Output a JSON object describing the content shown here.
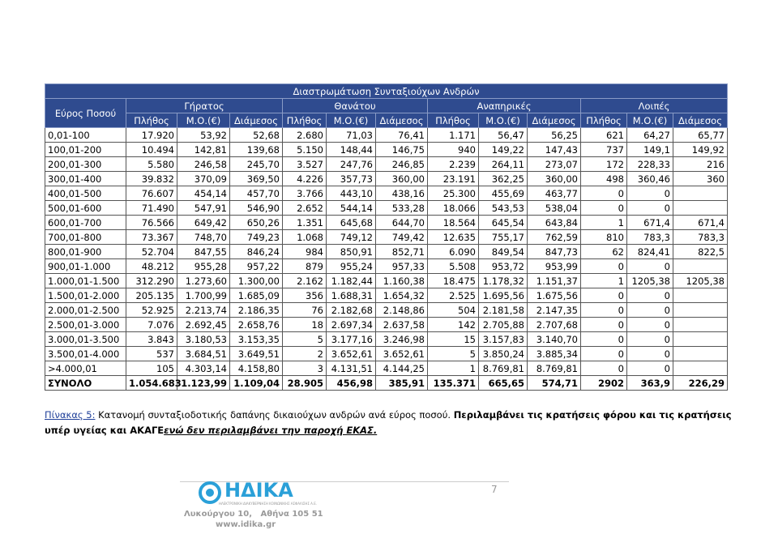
{
  "table": {
    "title": "Διαστρωμάτωση Συνταξιούχων Ανδρών",
    "row_header": "Εύρος Ποσού",
    "groups": [
      "Γήρατος",
      "Θανάτου",
      "Αναπηρικές",
      "Λοιπές"
    ],
    "subheaders": [
      "Πλήθος",
      "Μ.Ο.(€)",
      "Διάμεσος"
    ],
    "rows": [
      [
        "0,01-100",
        "17.920",
        "53,92",
        "52,68",
        "2.680",
        "71,03",
        "76,41",
        "1.171",
        "56,47",
        "56,25",
        "621",
        "64,27",
        "65,77"
      ],
      [
        "100,01-200",
        "10.494",
        "142,81",
        "139,68",
        "5.150",
        "148,44",
        "146,75",
        "940",
        "149,22",
        "147,43",
        "737",
        "149,1",
        "149,92"
      ],
      [
        "200,01-300",
        "5.580",
        "246,58",
        "245,70",
        "3.527",
        "247,76",
        "246,85",
        "2.239",
        "264,11",
        "273,07",
        "172",
        "228,33",
        "216"
      ],
      [
        "300,01-400",
        "39.832",
        "370,09",
        "369,50",
        "4.226",
        "357,73",
        "360,00",
        "23.191",
        "362,25",
        "360,00",
        "498",
        "360,46",
        "360"
      ],
      [
        "400,01-500",
        "76.607",
        "454,14",
        "457,70",
        "3.766",
        "443,10",
        "438,16",
        "25.300",
        "455,69",
        "463,77",
        "0",
        "0",
        null
      ],
      [
        "500,01-600",
        "71.490",
        "547,91",
        "546,90",
        "2.652",
        "544,14",
        "533,28",
        "18.066",
        "543,53",
        "538,04",
        "0",
        "0",
        null
      ],
      [
        "600,01-700",
        "76.566",
        "649,42",
        "650,26",
        "1.351",
        "645,68",
        "644,70",
        "18.564",
        "645,54",
        "643,84",
        "1",
        "671,4",
        "671,4"
      ],
      [
        "700,01-800",
        "73.367",
        "748,70",
        "749,23",
        "1.068",
        "749,12",
        "749,42",
        "12.635",
        "755,17",
        "762,59",
        "810",
        "783,3",
        "783,3"
      ],
      [
        "800,01-900",
        "52.704",
        "847,55",
        "846,24",
        "984",
        "850,91",
        "852,71",
        "6.090",
        "849,54",
        "847,73",
        "62",
        "824,41",
        "822,5"
      ],
      [
        "900,01-1.000",
        "48.212",
        "955,28",
        "957,22",
        "879",
        "955,24",
        "957,33",
        "5.508",
        "953,72",
        "953,99",
        "0",
        "0",
        null
      ],
      [
        "1.000,01-1.500",
        "312.290",
        "1.273,60",
        "1.300,00",
        "2.162",
        "1.182,44",
        "1.160,38",
        "18.475",
        "1.178,32",
        "1.151,37",
        "1",
        "1205,38",
        "1205,38"
      ],
      [
        "1.500,01-2.000",
        "205.135",
        "1.700,99",
        "1.685,09",
        "356",
        "1.688,31",
        "1.654,32",
        "2.525",
        "1.695,56",
        "1.675,56",
        "0",
        "0",
        null
      ],
      [
        "2.000,01-2.500",
        "52.925",
        "2.213,74",
        "2.186,35",
        "76",
        "2.182,68",
        "2.148,86",
        "504",
        "2.181,58",
        "2.147,35",
        "0",
        "0",
        null
      ],
      [
        "2.500,01-3.000",
        "7.076",
        "2.692,45",
        "2.658,76",
        "18",
        "2.697,34",
        "2.637,58",
        "142",
        "2.705,88",
        "2.707,68",
        "0",
        "0",
        null
      ],
      [
        "3.000,01-3.500",
        "3.843",
        "3.180,53",
        "3.153,35",
        "5",
        "3.177,16",
        "3.246,98",
        "15",
        "3.157,83",
        "3.140,70",
        "0",
        "0",
        null
      ],
      [
        "3.500,01-4.000",
        "537",
        "3.684,51",
        "3.649,51",
        "2",
        "3.652,61",
        "3.652,61",
        "5",
        "3.850,24",
        "3.885,34",
        "0",
        "0",
        null
      ],
      [
        ">4.000,01",
        "105",
        "4.303,14",
        "4.158,80",
        "3",
        "4.131,51",
        "4.144,25",
        "1",
        "8.769,81",
        "8.769,81",
        "0",
        "0",
        null
      ]
    ],
    "total": [
      "ΣΥΝΟΛΟ",
      "1.054.683",
      "1.123,99",
      "1.109,04",
      "28.905",
      "456,98",
      "385,91",
      "135.371",
      "665,65",
      "574,71",
      "2902",
      "363,9",
      "226,29"
    ]
  },
  "caption": {
    "label": "Πίνακας 5:",
    "text": " Κατανομή συνταξιοδοτικής δαπάνης δικαιούχων ανδρών ανά εύρος ποσού. ",
    "bold": "Περιλαμβάνει τις κρατήσεις φόρου και τις κρατήσεις υπέρ υγείας και ΑΚΑΓΕ",
    "emphasis": "ενώ δεν περιλαμβάνει την παροχή ΕΚΑΣ."
  },
  "footer": {
    "logo": "ΗΔΙΚΑ",
    "logo_sub": "ΗΛΕΚΤΡΟΝΙΚΗ ΔΙΑΚΥΒΕΡΝΗΣΗ ΚΟΙΝΩΝΙΚΗΣ ΑΣΦΑΛΙΣΗΣ Α.Ε.",
    "address": "Λυκούργου 10,   Αθήνα 105 51",
    "web": "www.idika.gr",
    "page": "7"
  }
}
